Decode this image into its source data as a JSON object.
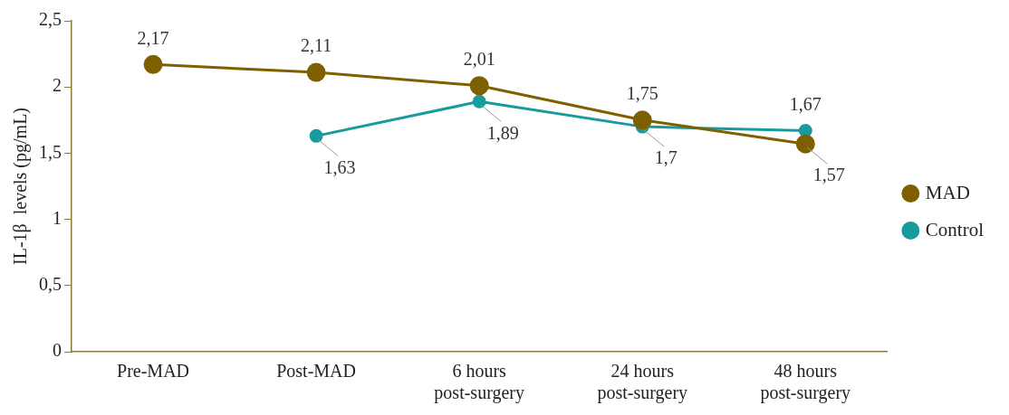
{
  "chart_data": {
    "type": "line",
    "ylabel": "IL-1β  levels (pg/mL)",
    "categories": [
      "Pre-MAD",
      "Post-MAD",
      "6 hours post-surgery",
      "24 hours post-surgery",
      "48 hours post-surgery"
    ],
    "series": [
      {
        "name": "MAD",
        "color": "#7f6000",
        "values": [
          2.17,
          2.11,
          2.01,
          1.75,
          1.57
        ],
        "value_labels": [
          "2,17",
          "2,11",
          "2,01",
          "1,75",
          "1,57"
        ]
      },
      {
        "name": "Control",
        "color": "#1a9b9b",
        "values": [
          null,
          1.63,
          1.89,
          1.7,
          1.67
        ],
        "value_labels": [
          null,
          "1,63",
          "1,89",
          "1,7",
          "1,67"
        ]
      }
    ],
    "ylim": [
      0,
      2.5
    ],
    "yticks": [
      {
        "value": 0,
        "label": "0"
      },
      {
        "value": 0.5,
        "label": "0,5"
      },
      {
        "value": 1,
        "label": "1"
      },
      {
        "value": 1.5,
        "label": "1,5"
      },
      {
        "value": 2,
        "label": "2"
      },
      {
        "value": 2.5,
        "label": "2,5"
      }
    ],
    "grid": false,
    "legend": "right",
    "marker": "circle",
    "line_style": "solid"
  }
}
